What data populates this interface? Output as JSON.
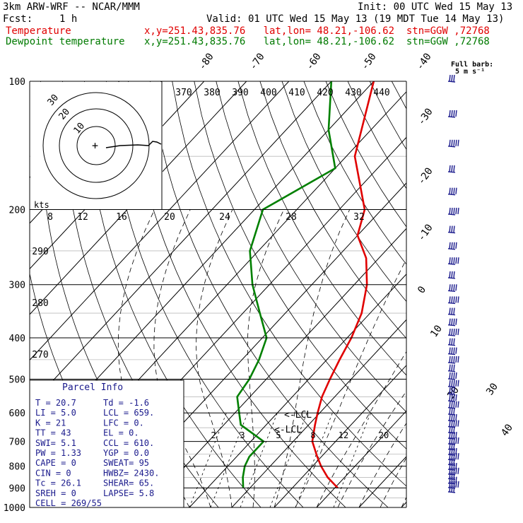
{
  "header": {
    "model": "3km ARW-WRF -- NCAR/MMM",
    "init": "Init: 00 UTC Wed 15 May 13",
    "fcst_label": "Fcst:",
    "fcst_value": "1 h",
    "valid": "Valid: 01 UTC Wed 15 May 13 (19 MDT Tue 14 May 13)",
    "temp_label": "Temperature",
    "temp_loc": "x,y=251.43,835.76   lat,lon= 48.21,-106.62  stn=GGW ,72768",
    "dew_label": "Dewpoint temperature",
    "dew_loc": "x,y=251.43,835.76   lat,lon= 48.21,-106.62  stn=GGW ,72768"
  },
  "colors": {
    "temperature": "#e00000",
    "dewpoint": "#008000",
    "barbs": "#1a1a8c"
  },
  "chart_data": {
    "type": "line",
    "title": "Skew-T",
    "y_axis": "pressure (hPa)",
    "pressure_levels": [
      100,
      200,
      300,
      400,
      500,
      600,
      700,
      800,
      900,
      1000
    ],
    "skewed_temperature_ticks": [
      -80,
      -70,
      -60,
      -50,
      -40,
      -30,
      -20,
      -10,
      0,
      10,
      20,
      30,
      40
    ],
    "theta_labels": [
      370,
      380,
      390,
      400,
      410,
      420,
      430,
      440
    ],
    "hodograph_speed_ticks": [
      8,
      12,
      16,
      20,
      24,
      28,
      32
    ],
    "hodograph_rings": [
      10,
      20,
      30
    ],
    "hodograph_unit": "kts",
    "mixing_ratio_labels": [
      "2",
      "3",
      "5",
      "8",
      "12",
      "20"
    ],
    "left_theta_labels": [
      290,
      280,
      270
    ],
    "lcl_label": "LCL",
    "barb_legend": [
      "Full barb:",
      "5 m s⁻¹"
    ],
    "series": [
      {
        "name": "Temperature",
        "color": "#e00000",
        "p": [
          100,
          150,
          200,
          230,
          260,
          300,
          350,
          400,
          450,
          500,
          550,
          600,
          640,
          700,
          760,
          800,
          850,
          900
        ],
        "t": [
          -60,
          -48,
          -34,
          -30,
          -23,
          -17,
          -12,
          -9,
          -7,
          -5,
          -3,
          -0.5,
          1.5,
          4.5,
          9,
          12,
          16,
          20.7
        ]
      },
      {
        "name": "Dewpoint temperature",
        "color": "#008000",
        "p": [
          100,
          130,
          160,
          200,
          250,
          300,
          350,
          400,
          450,
          500,
          550,
          600,
          640,
          700,
          760,
          800,
          850,
          900
        ],
        "t": [
          -70,
          -60,
          -50,
          -58,
          -52,
          -44,
          -36,
          -29,
          -26,
          -24,
          -23,
          -19,
          -16,
          -7,
          -7,
          -6,
          -4,
          -1.6
        ]
      }
    ]
  },
  "parcel_info": {
    "title": "Parcel Info",
    "rows": [
      [
        "T  =    20.7",
        "Td =  -1.6"
      ],
      [
        "LI =     5.0",
        "LCL =  659."
      ],
      [
        "K  =      21",
        "LFC =    0."
      ],
      [
        "TT =      43",
        "EL  =    0."
      ],
      [
        "SWI=     5.1",
        "CCL =  610."
      ],
      [
        "PW =    1.33",
        "YGP =   0.0"
      ],
      [
        "CAPE =     0",
        "SWEAT=   95"
      ],
      [
        "CIN  =     0",
        "HWBZ= 2430."
      ],
      [
        "Tc =    26.1",
        "SHEAR=  65."
      ],
      [
        "SREH =     0",
        "LAPSE=  5.8"
      ],
      [
        "CELL = 269/55",
        ""
      ]
    ]
  }
}
